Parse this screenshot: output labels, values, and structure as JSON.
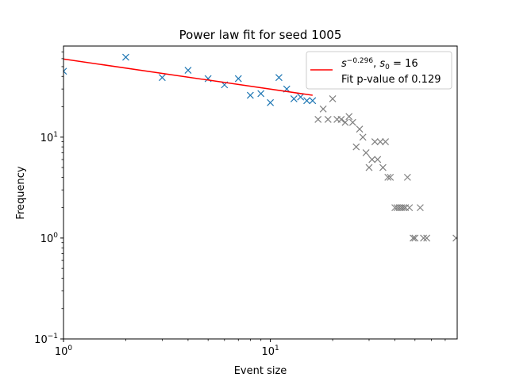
{
  "chart_data": {
    "type": "scatter",
    "title": "Power law fit for seed 1005",
    "xlabel": "Event size",
    "ylabel": "Frequency",
    "xscale": "log",
    "yscale": "log",
    "xlim": [
      1,
      80
    ],
    "ylim": [
      0.1,
      80
    ],
    "xticks": [
      {
        "value": 1,
        "base": "10",
        "exp": "0"
      },
      {
        "value": 10,
        "base": "10",
        "exp": "1"
      }
    ],
    "yticks": [
      {
        "value": 0.1,
        "base": "10",
        "exp": "−1"
      },
      {
        "value": 1,
        "base": "10",
        "exp": "0"
      },
      {
        "value": 10,
        "base": "10",
        "exp": "1"
      }
    ],
    "legend": {
      "position": "upper right",
      "fit_label": {
        "exponent": "−0.296",
        "s0_value": "16"
      },
      "pvalue_label": "Fit p-value of 0.129"
    },
    "series": [
      {
        "marker": "x",
        "color": "#1f77b4",
        "points": [
          [
            1,
            45
          ],
          [
            2,
            62
          ],
          [
            3,
            39
          ],
          [
            4,
            46
          ],
          [
            5,
            38
          ],
          [
            6,
            33
          ],
          [
            7,
            38
          ],
          [
            8,
            26
          ],
          [
            9,
            27
          ],
          [
            10,
            22
          ],
          [
            11,
            39
          ],
          [
            12,
            30
          ],
          [
            13,
            24
          ],
          [
            14,
            25
          ],
          [
            15,
            23
          ],
          [
            16,
            23
          ]
        ]
      },
      {
        "marker": "x",
        "color": "#808080",
        "points": [
          [
            17,
            15
          ],
          [
            18,
            19
          ],
          [
            19,
            15
          ],
          [
            20,
            24
          ],
          [
            21,
            15
          ],
          [
            22,
            15
          ],
          [
            23,
            14
          ],
          [
            24,
            16
          ],
          [
            25,
            14
          ],
          [
            26,
            8
          ],
          [
            27,
            12
          ],
          [
            28,
            10
          ],
          [
            29,
            7
          ],
          [
            30,
            5
          ],
          [
            31,
            6
          ],
          [
            32,
            9
          ],
          [
            33,
            6
          ],
          [
            34,
            9
          ],
          [
            35,
            5
          ],
          [
            36,
            9
          ],
          [
            37,
            4
          ],
          [
            38,
            4
          ],
          [
            40,
            2
          ],
          [
            41,
            2
          ],
          [
            42,
            2
          ],
          [
            43,
            2
          ],
          [
            44,
            2
          ],
          [
            45,
            2
          ],
          [
            46,
            4
          ],
          [
            47,
            2
          ],
          [
            49,
            1
          ],
          [
            50,
            1
          ],
          [
            53,
            2
          ],
          [
            55,
            1
          ],
          [
            57,
            1
          ],
          [
            79,
            1
          ]
        ]
      },
      {
        "type": "line",
        "color": "#ff0000",
        "x": [
          1,
          16
        ],
        "y": [
          59.5,
          26.0
        ]
      }
    ]
  }
}
